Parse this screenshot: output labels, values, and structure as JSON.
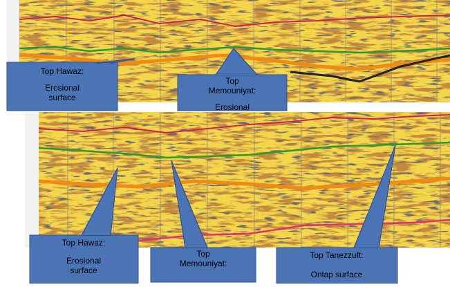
{
  "panels": [
    {
      "callouts": [
        {
          "title": "Top Hawaz:",
          "lines": [
            "Erosional",
            "surface"
          ]
        },
        {
          "title": [
            "Top",
            "Memouniyat:"
          ],
          "lines": [
            "Erosional"
          ]
        }
      ]
    },
    {
      "callouts": [
        {
          "title": "Top Hawaz:",
          "lines": [
            "Erosional",
            "surface"
          ]
        },
        {
          "title": [
            "Top",
            "Memouniyat:"
          ],
          "lines": []
        },
        {
          "title": "Top Tanezzuft:",
          "lines": [
            "Onlap surface"
          ]
        }
      ]
    }
  ]
}
